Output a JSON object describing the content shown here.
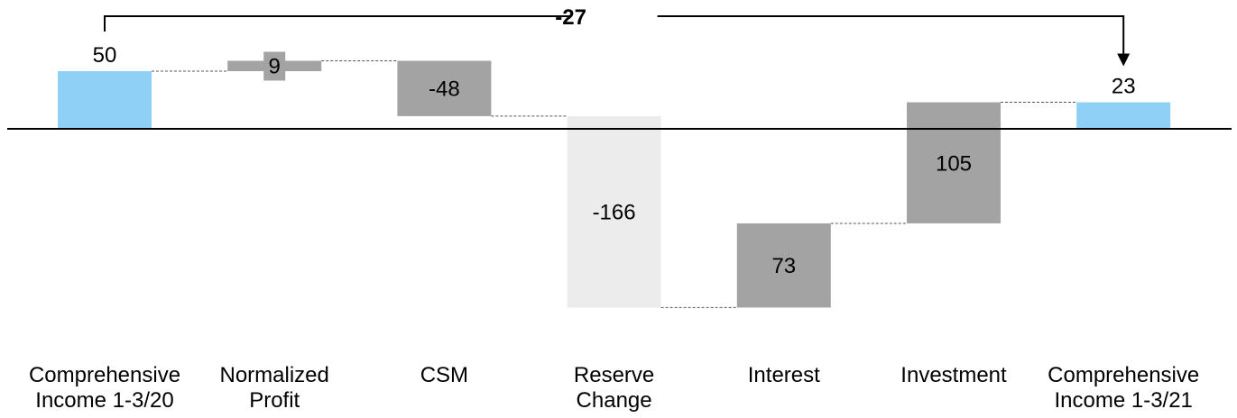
{
  "chart_data": {
    "type": "waterfall",
    "title": "",
    "xlabel": "",
    "ylabel": "",
    "ylim": [
      -200,
      80
    ],
    "grid": false,
    "legend": "none",
    "zero_line": true,
    "bars": [
      {
        "category": "Comprehensive\nIncome 1-3/20",
        "value": 50,
        "kind": "total",
        "label": "50",
        "color": "#8fd0f6"
      },
      {
        "category": "Normalized\nProfit",
        "value": 9,
        "kind": "delta",
        "label": "9",
        "color": "#a3a3a3"
      },
      {
        "category": "CSM",
        "value": -48,
        "kind": "delta",
        "label": "-48",
        "color": "#a3a3a3"
      },
      {
        "category": "Reserve\nChange",
        "value": -166,
        "kind": "delta",
        "label": "-166",
        "color": "#ececec"
      },
      {
        "category": "Interest",
        "value": 73,
        "kind": "delta",
        "label": "73",
        "color": "#a3a3a3"
      },
      {
        "category": "Investment",
        "value": 105,
        "kind": "delta",
        "label": "105",
        "color": "#a3a3a3"
      },
      {
        "category": "Comprehensive\nIncome 1-3/21",
        "value": 23,
        "kind": "total",
        "label": "23",
        "color": "#8fd0f6"
      }
    ],
    "change_annotation": {
      "label": "-27",
      "from": 0,
      "to": 6
    }
  }
}
